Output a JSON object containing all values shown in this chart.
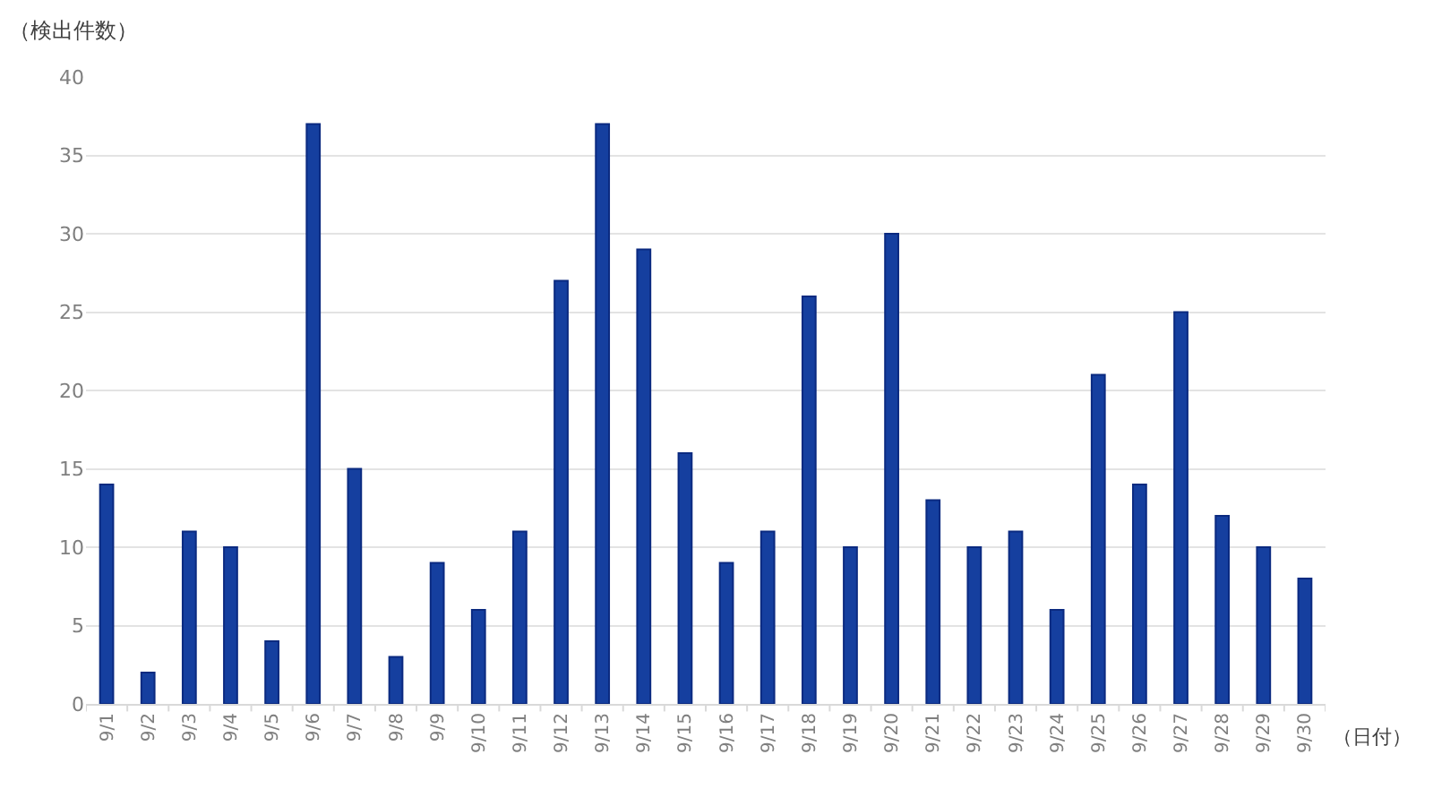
{
  "chart_data": {
    "type": "bar",
    "ylabel": "（検出件数）",
    "xlabel": "（日付）",
    "categories": [
      "9/1",
      "9/2",
      "9/3",
      "9/4",
      "9/5",
      "9/6",
      "9/7",
      "9/8",
      "9/9",
      "9/10",
      "9/11",
      "9/12",
      "9/13",
      "9/14",
      "9/15",
      "9/16",
      "9/17",
      "9/18",
      "9/19",
      "9/20",
      "9/21",
      "9/22",
      "9/23",
      "9/24",
      "9/25",
      "9/26",
      "9/27",
      "9/28",
      "9/29",
      "9/30"
    ],
    "values": [
      14,
      2,
      11,
      10,
      4,
      37,
      15,
      3,
      9,
      6,
      11,
      27,
      37,
      29,
      16,
      9,
      11,
      26,
      10,
      30,
      13,
      10,
      11,
      6,
      21,
      14,
      25,
      12,
      10,
      8
    ],
    "color": "#153f9f",
    "ylim": [
      0,
      40
    ],
    "yticks": [
      0,
      5,
      10,
      15,
      20,
      25,
      30,
      35,
      40
    ],
    "grid": "y"
  }
}
